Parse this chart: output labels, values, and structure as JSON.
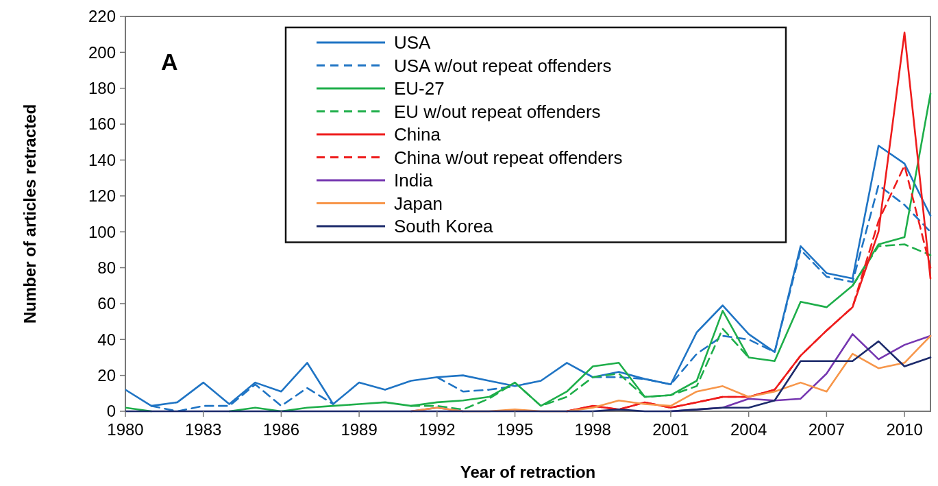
{
  "chart_data": {
    "type": "line",
    "xlabel": "Year of retraction",
    "ylabel": "Number of articles retracted",
    "annotations": [
      "A"
    ],
    "x": [
      1980,
      1981,
      1982,
      1983,
      1984,
      1985,
      1986,
      1987,
      1988,
      1989,
      1990,
      1991,
      1992,
      1993,
      1994,
      1995,
      1996,
      1997,
      1998,
      1999,
      2000,
      2001,
      2002,
      2003,
      2004,
      2005,
      2006,
      2007,
      2008,
      2009,
      2010,
      2011
    ],
    "xlim": [
      1980,
      2011
    ],
    "xticks": [
      1980,
      1983,
      1986,
      1989,
      1992,
      1995,
      1998,
      2001,
      2004,
      2007,
      2010
    ],
    "ylim": [
      0,
      220
    ],
    "yticks": [
      0,
      20,
      40,
      60,
      80,
      100,
      120,
      140,
      160,
      180,
      200,
      220
    ],
    "grid": false,
    "legend": "top",
    "marker": "none",
    "series": [
      {
        "name": "USA",
        "color": "#1f74c4",
        "line_style": "solid",
        "values": [
          12,
          3,
          5,
          16,
          4,
          16,
          11,
          27,
          4,
          16,
          12,
          17,
          19,
          20,
          17,
          14,
          17,
          27,
          19,
          22,
          18,
          15,
          44,
          59,
          43,
          33,
          92,
          77,
          74,
          148,
          138,
          109
        ]
      },
      {
        "name": "USA w/out repeat offenders",
        "color": "#1f74c4",
        "line_style": "dashed",
        "values": [
          null,
          3,
          0,
          3,
          3,
          15,
          3,
          13,
          4,
          null,
          null,
          null,
          19,
          11,
          12,
          14,
          null,
          null,
          19,
          19,
          18,
          15,
          32,
          42,
          40,
          33,
          90,
          75,
          72,
          126,
          115,
          100
        ]
      },
      {
        "name": "EU-27",
        "color": "#1eae4a",
        "line_style": "solid",
        "values": [
          2,
          0,
          null,
          null,
          0,
          2,
          0,
          2,
          3,
          4,
          5,
          3,
          5,
          6,
          8,
          16,
          3,
          11,
          25,
          27,
          8,
          9,
          17,
          56,
          30,
          28,
          61,
          58,
          70,
          93,
          97,
          177
        ]
      },
      {
        "name": "EU w/out repeat offenders",
        "color": "#1eae4a",
        "line_style": "dashed",
        "values": [
          null,
          null,
          null,
          null,
          null,
          null,
          null,
          null,
          null,
          null,
          null,
          3,
          3,
          1,
          7,
          16,
          3,
          8,
          19,
          21,
          8,
          9,
          14,
          46,
          30,
          null,
          null,
          null,
          70,
          92,
          93,
          87
        ]
      },
      {
        "name": "China",
        "color": "#ee1c1c",
        "line_style": "solid",
        "values": [
          null,
          null,
          null,
          null,
          null,
          null,
          null,
          null,
          null,
          null,
          null,
          null,
          null,
          null,
          null,
          null,
          null,
          0,
          3,
          1,
          5,
          2,
          5,
          8,
          8,
          12,
          31,
          45,
          58,
          100,
          211,
          74
        ]
      },
      {
        "name": "China w/out repeat offenders",
        "color": "#ee1c1c",
        "line_style": "dashed",
        "values": [
          null,
          null,
          null,
          null,
          null,
          null,
          null,
          null,
          null,
          null,
          null,
          null,
          null,
          null,
          null,
          null,
          null,
          0,
          3,
          1,
          5,
          2,
          5,
          8,
          8,
          12,
          31,
          45,
          58,
          106,
          137,
          80
        ]
      },
      {
        "name": "India",
        "color": "#7536b0",
        "line_style": "solid",
        "values": [
          null,
          null,
          null,
          null,
          null,
          null,
          null,
          null,
          null,
          null,
          null,
          0,
          2,
          0,
          null,
          null,
          null,
          null,
          null,
          null,
          null,
          0,
          1,
          2,
          7,
          6,
          7,
          21,
          43,
          29,
          37,
          42
        ]
      },
      {
        "name": "Japan",
        "color": "#f7964a",
        "line_style": "solid",
        "values": [
          null,
          null,
          null,
          null,
          null,
          null,
          null,
          null,
          null,
          null,
          null,
          0,
          2,
          0,
          0,
          1,
          0,
          0,
          2,
          6,
          4,
          3,
          11,
          14,
          8,
          11,
          16,
          11,
          32,
          24,
          27,
          42
        ]
      },
      {
        "name": "South Korea",
        "color": "#1c2a6b",
        "line_style": "solid",
        "values": [
          0,
          0,
          0,
          0,
          0,
          0,
          0,
          0,
          0,
          0,
          0,
          0,
          0,
          0,
          0,
          0,
          0,
          0,
          0,
          1,
          0,
          0,
          1,
          2,
          2,
          6,
          28,
          28,
          28,
          39,
          25,
          30
        ]
      }
    ]
  }
}
